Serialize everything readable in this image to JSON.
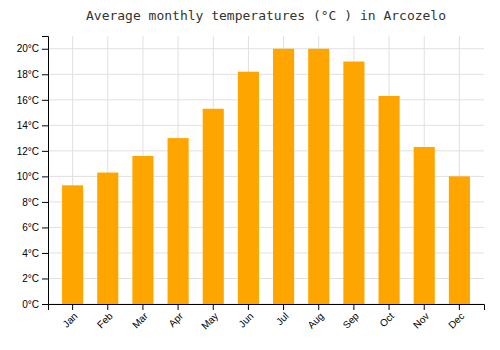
{
  "chart_data": {
    "type": "bar",
    "title": "Average monthly temperatures (°C ) in Arcozelo",
    "categories": [
      "Jan",
      "Feb",
      "Mar",
      "Apr",
      "May",
      "Jun",
      "Jul",
      "Aug",
      "Sep",
      "Oct",
      "Nov",
      "Dec"
    ],
    "values": [
      9.3,
      10.3,
      11.6,
      13.0,
      15.3,
      18.2,
      20.0,
      20.0,
      19.0,
      16.3,
      12.3,
      10.0
    ],
    "color": "#FFA500",
    "ylim": [
      0,
      21
    ],
    "yticks": [
      {
        "value": 0,
        "label": "0°C"
      },
      {
        "value": 2,
        "label": "2°C"
      },
      {
        "value": 4,
        "label": "4°C"
      },
      {
        "value": 6,
        "label": "6°C"
      },
      {
        "value": 8,
        "label": "8°C"
      },
      {
        "value": 10,
        "label": "10°C"
      },
      {
        "value": 12,
        "label": "12°C"
      },
      {
        "value": 14,
        "label": "14°C"
      },
      {
        "value": 16,
        "label": "16°C"
      },
      {
        "value": 18,
        "label": "18°C"
      },
      {
        "value": 20,
        "label": "20°C"
      }
    ],
    "grid": true
  }
}
